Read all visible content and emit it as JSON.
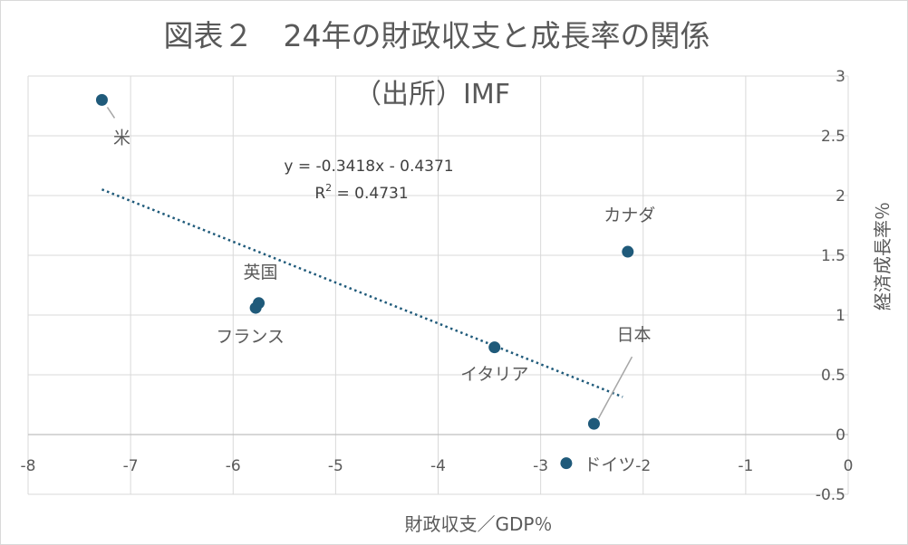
{
  "chart_data": {
    "type": "scatter",
    "title": "図表２　24年の財政収支と成長率の関係",
    "subtitle": "（出所）IMF",
    "xlabel": "財政収支／GDP％",
    "ylabel": "経済成長率％",
    "xlim": [
      -8,
      0
    ],
    "ylim": [
      -0.5,
      3
    ],
    "xticks": [
      -8,
      -7,
      -6,
      -5,
      -4,
      -3,
      -2,
      -1,
      0
    ],
    "yticks": [
      -0.5,
      0,
      0.5,
      1,
      1.5,
      2,
      2.5,
      3
    ],
    "xtick_labels": [
      "-8",
      "-7",
      "-6",
      "-5",
      "-4",
      "-3",
      "-2",
      "-1",
      "0"
    ],
    "ytick_labels": [
      "-0.5",
      "0",
      "0.5",
      "1",
      "1.5",
      "2",
      "2.5",
      "3"
    ],
    "grid": true,
    "marker_color": "#1f5a7a",
    "points": [
      {
        "label": "米",
        "x": -7.28,
        "y": 2.8
      },
      {
        "label": "英国",
        "x": -5.75,
        "y": 1.1
      },
      {
        "label": "フランス",
        "x": -5.78,
        "y": 1.06
      },
      {
        "label": "イタリア",
        "x": -3.45,
        "y": 0.73
      },
      {
        "label": "カナダ",
        "x": -2.15,
        "y": 1.53
      },
      {
        "label": "日本",
        "x": -2.48,
        "y": 0.09
      },
      {
        "label": "ドイツ",
        "x": -2.75,
        "y": -0.24
      }
    ],
    "trendline": {
      "slope": -0.3418,
      "intercept": -0.4371,
      "x_range": [
        -7.28,
        -2.2
      ],
      "equation": "y = -0.3418x - 0.4371",
      "r2_prefix": "R",
      "r2_exp": "2",
      "r2_value": " = 0.4731"
    }
  }
}
